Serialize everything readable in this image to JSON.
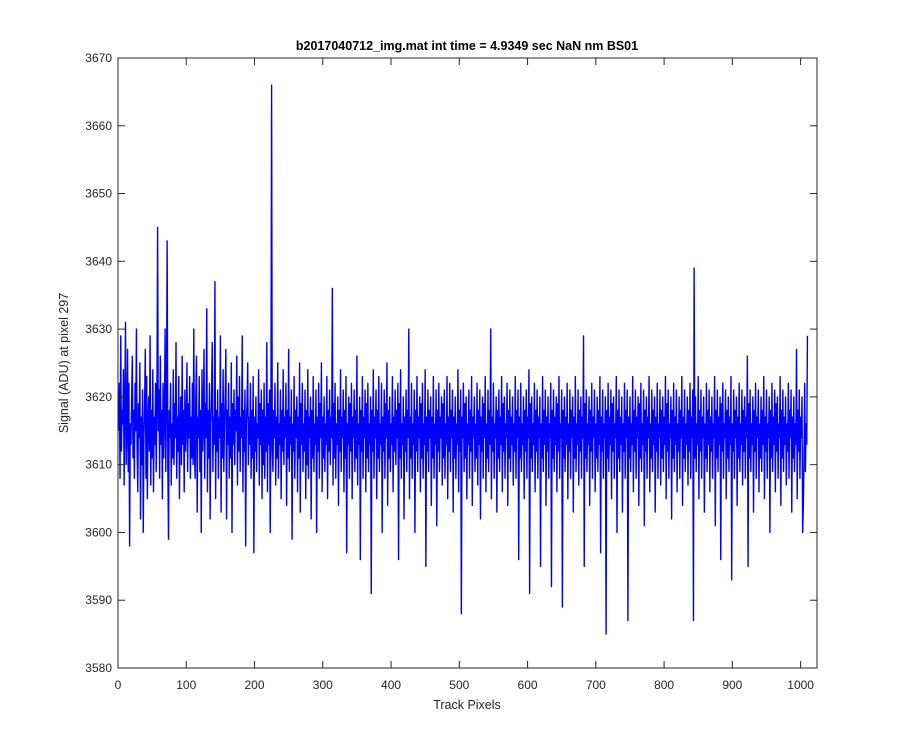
{
  "chart_data": {
    "type": "line",
    "title": "b2017040712_img.mat int time = 4.9349 sec  NaN nm BS01",
    "xlabel": "Track Pixels",
    "ylabel": "Signal (ADU) at pixel 297",
    "xlim": [
      0,
      1024
    ],
    "ylim": [
      3580,
      3670
    ],
    "xticks": [
      0,
      100,
      200,
      300,
      400,
      500,
      600,
      700,
      800,
      900,
      1000
    ],
    "yticks": [
      3580,
      3590,
      3600,
      3610,
      3620,
      3630,
      3640,
      3650,
      3660,
      3670
    ],
    "grid": false,
    "series_color": "#0000ff",
    "series": [
      {
        "x_start": 1,
        "x_step": 1,
        "values": [
          3615,
          3622,
          3608,
          3629,
          3612,
          3618,
          3616,
          3624,
          3607,
          3619,
          3631,
          3610,
          3615,
          3627,
          3609,
          3622,
          3598,
          3616,
          3613,
          3620,
          3626,
          3611,
          3618,
          3608,
          3622,
          3615,
          3630,
          3612,
          3606,
          3619,
          3614,
          3625,
          3602,
          3617,
          3610,
          3621,
          3600,
          3614,
          3619,
          3627,
          3608,
          3623,
          3605,
          3616,
          3620,
          3612,
          3629,
          3607,
          3618,
          3611,
          3624,
          3606,
          3617,
          3613,
          3622,
          3609,
          3619,
          3645,
          3615,
          3621,
          3608,
          3626,
          3613,
          3618,
          3605,
          3622,
          3611,
          3617,
          3630,
          3609,
          3620,
          3643,
          3610,
          3599,
          3618,
          3614,
          3622,
          3607,
          3616,
          3611,
          3624,
          3610,
          3619,
          3614,
          3628,
          3608,
          3617,
          3612,
          3623,
          3605,
          3615,
          3620,
          3610,
          3626,
          3613,
          3618,
          3606,
          3621,
          3612,
          3616,
          3625,
          3609,
          3619,
          3614,
          3623,
          3608,
          3617,
          3611,
          3622,
          3610,
          3630,
          3612,
          3608,
          3620,
          3626,
          3603,
          3617,
          3614,
          3623,
          3609,
          3618,
          3600,
          3624,
          3612,
          3616,
          3627,
          3608,
          3619,
          3614,
          3633,
          3606,
          3618,
          3611,
          3622,
          3602,
          3616,
          3620,
          3628,
          3609,
          3617,
          3613,
          3637,
          3605,
          3618,
          3612,
          3621,
          3608,
          3617,
          3614,
          3629,
          3603,
          3619,
          3611,
          3624,
          3609,
          3616,
          3620,
          3627,
          3602,
          3618,
          3613,
          3622,
          3608,
          3617,
          3611,
          3625,
          3600,
          3619,
          3613,
          3621,
          3610,
          3618,
          3615,
          3626,
          3607,
          3620,
          3612,
          3623,
          3609,
          3617,
          3614,
          3629,
          3606,
          3618,
          3612,
          3621,
          3598,
          3616,
          3619,
          3625,
          3610,
          3617,
          3613,
          3622,
          3608,
          3618,
          3611,
          3623,
          3597,
          3617,
          3612,
          3620,
          3609,
          3616,
          3614,
          3624,
          3607,
          3619,
          3613,
          3621,
          3605,
          3618,
          3610,
          3622,
          3608,
          3617,
          3612,
          3628,
          3606,
          3619,
          3613,
          3621,
          3600,
          3616,
          3666,
          3612,
          3609,
          3618,
          3614,
          3622,
          3607,
          3617,
          3611,
          3625,
          3608,
          3616,
          3613,
          3621,
          3605,
          3618,
          3612,
          3624,
          3610,
          3617,
          3614,
          3622,
          3604,
          3618,
          3611,
          3627,
          3609,
          3617,
          3613,
          3621,
          3599,
          3616,
          3612,
          3623,
          3608,
          3618,
          3614,
          3620,
          3606,
          3617,
          3611,
          3625,
          3603,
          3619,
          3613,
          3622,
          3609,
          3616,
          3612,
          3621,
          3605,
          3618,
          3610,
          3624,
          3608,
          3617,
          3614,
          3620,
          3602,
          3618,
          3611,
          3623,
          3609,
          3616,
          3613,
          3621,
          3600,
          3617,
          3612,
          3622,
          3608,
          3619,
          3614,
          3625,
          3606,
          3617,
          3611,
          3620,
          3609,
          3616,
          3613,
          3623,
          3605,
          3618,
          3612,
          3621,
          3610,
          3617,
          3614,
          3636,
          3607,
          3619,
          3611,
          3622,
          3608,
          3616,
          3613,
          3620,
          3604,
          3618,
          3612,
          3624,
          3609,
          3617,
          3614,
          3621,
          3606,
          3618,
          3611,
          3623,
          3597,
          3616,
          3613,
          3620,
          3608,
          3619,
          3612,
          3622,
          3605,
          3617,
          3614,
          3621,
          3609,
          3618,
          3611,
          3626,
          3607,
          3616,
          3613,
          3620,
          3596,
          3618,
          3612,
          3623,
          3608,
          3617,
          3614,
          3621,
          3606,
          3619,
          3611,
          3622,
          3609,
          3616,
          3613,
          3620,
          3591,
          3618,
          3612,
          3624,
          3608,
          3617,
          3614,
          3621,
          3605,
          3618,
          3611,
          3623,
          3609,
          3616,
          3613,
          3622,
          3600,
          3617,
          3612,
          3621,
          3608,
          3619,
          3614,
          3625,
          3604,
          3618,
          3611,
          3620,
          3609,
          3616,
          3613,
          3623,
          3606,
          3617,
          3612,
          3621,
          3610,
          3618,
          3614,
          3622,
          3596,
          3619,
          3611,
          3624,
          3608,
          3616,
          3613,
          3620,
          3602,
          3617,
          3612,
          3621,
          3609,
          3618,
          3614,
          3630,
          3605,
          3617,
          3611,
          3622,
          3608,
          3616,
          3613,
          3621,
          3600,
          3618,
          3612,
          3623,
          3609,
          3617,
          3614,
          3620,
          3606,
          3619,
          3611,
          3622,
          3608,
          3616,
          3613,
          3624,
          3595,
          3617,
          3612,
          3621,
          3609,
          3618,
          3614,
          3620,
          3604,
          3617,
          3611,
          3623,
          3608,
          3616,
          3613,
          3621,
          3601,
          3618,
          3612,
          3622,
          3609,
          3617,
          3614,
          3620,
          3607,
          3619,
          3611,
          3621,
          3608,
          3616,
          3613,
          3623,
          3605,
          3617,
          3612,
          3622,
          3609,
          3618,
          3614,
          3621,
          3603,
          3617,
          3611,
          3620,
          3608,
          3616,
          3613,
          3624,
          3606,
          3618,
          3612,
          3621,
          3588,
          3617,
          3614,
          3622,
          3609,
          3619,
          3611,
          3620,
          3605,
          3616,
          3613,
          3621,
          3608,
          3618,
          3612,
          3623,
          3604,
          3617,
          3614,
          3620,
          3609,
          3616,
          3611,
          3622,
          3607,
          3618,
          3613,
          3621,
          3602,
          3617,
          3612,
          3620,
          3608,
          3619,
          3614,
          3623,
          3606,
          3616,
          3611,
          3621,
          3609,
          3618,
          3613,
          3630,
          3605,
          3617,
          3612,
          3622,
          3608,
          3616,
          3614,
          3620,
          3603,
          3618,
          3611,
          3621,
          3609,
          3617,
          3613,
          3623,
          3606,
          3619,
          3612,
          3620,
          3608,
          3616,
          3614,
          3622,
          3604,
          3618,
          3611,
          3621,
          3609,
          3617,
          3613,
          3620,
          3607,
          3616,
          3612,
          3623,
          3608,
          3618,
          3614,
          3621,
          3596,
          3617,
          3611,
          3622,
          3609,
          3616,
          3613,
          3620,
          3605,
          3618,
          3612,
          3621,
          3608,
          3617,
          3614,
          3624,
          3591,
          3619,
          3611,
          3620,
          3609,
          3616,
          3613,
          3622,
          3606,
          3618,
          3612,
          3621,
          3608,
          3617,
          3614,
          3620,
          3595,
          3616,
          3611,
          3623,
          3609,
          3618,
          3613,
          3621,
          3604,
          3617,
          3612,
          3620,
          3608,
          3616,
          3614,
          3622,
          3592,
          3618,
          3611,
          3621,
          3609,
          3617,
          3613,
          3620,
          3606,
          3619,
          3612,
          3623,
          3608,
          3616,
          3614,
          3621,
          3589,
          3618,
          3611,
          3620,
          3609,
          3617,
          3613,
          3622,
          3605,
          3616,
          3612,
          3621,
          3608,
          3618,
          3614,
          3620,
          3603,
          3617,
          3611,
          3623,
          3609,
          3616,
          3613,
          3621,
          3607,
          3618,
          3612,
          3620,
          3608,
          3617,
          3614,
          3629,
          3595,
          3619,
          3611,
          3621,
          3609,
          3616,
          3613,
          3620,
          3604,
          3618,
          3612,
          3622,
          3608,
          3617,
          3614,
          3621,
          3606,
          3616,
          3611,
          3620,
          3609,
          3618,
          3613,
          3623,
          3597,
          3617,
          3612,
          3621,
          3608,
          3616,
          3614,
          3620,
          3585,
          3618,
          3611,
          3622,
          3609,
          3617,
          3613,
          3621,
          3605,
          3619,
          3612,
          3620,
          3608,
          3616,
          3614,
          3623,
          3600,
          3618,
          3611,
          3621,
          3609,
          3617,
          3613,
          3620,
          3603,
          3616,
          3612,
          3622,
          3608,
          3618,
          3614,
          3621,
          3587,
          3617,
          3611,
          3620,
          3609,
          3616,
          3613,
          3623,
          3606,
          3618,
          3612,
          3621,
          3608,
          3617,
          3614,
          3620,
          3604,
          3619,
          3611,
          3622,
          3609,
          3616,
          3613,
          3621,
          3601,
          3618,
          3612,
          3620,
          3608,
          3617,
          3614,
          3623,
          3606,
          3616,
          3611,
          3621,
          3609,
          3618,
          3613,
          3620,
          3603,
          3617,
          3612,
          3622,
          3608,
          3616,
          3614,
          3621,
          3607,
          3618,
          3611,
          3620,
          3609,
          3617,
          3613,
          3623,
          3605,
          3619,
          3612,
          3621,
          3608,
          3616,
          3614,
          3620,
          3602,
          3618,
          3611,
          3622,
          3609,
          3617,
          3613,
          3621,
          3606,
          3616,
          3612,
          3620,
          3608,
          3618,
          3614,
          3623,
          3604,
          3617,
          3611,
          3621,
          3609,
          3616,
          3613,
          3620,
          3607,
          3618,
          3612,
          3622,
          3608,
          3617,
          3614,
          3621,
          3587,
          3639,
          3611,
          3620,
          3609,
          3616,
          3613,
          3623,
          3605,
          3618,
          3612,
          3621,
          3608,
          3617,
          3614,
          3620,
          3603,
          3616,
          3611,
          3622,
          3609,
          3618,
          3613,
          3621,
          3606,
          3617,
          3612,
          3620,
          3608,
          3616,
          3614,
          3623,
          3601,
          3618,
          3611,
          3621,
          3609,
          3617,
          3613,
          3620,
          3596,
          3619,
          3612,
          3622,
          3608,
          3616,
          3614,
          3621,
          3605,
          3618,
          3611,
          3620,
          3609,
          3617,
          3613,
          3623,
          3593,
          3616,
          3612,
          3621,
          3608,
          3618,
          3614,
          3620,
          3604,
          3617,
          3611,
          3622,
          3609,
          3616,
          3613,
          3621,
          3607,
          3618,
          3612,
          3620,
          3608,
          3617,
          3614,
          3626,
          3595,
          3619,
          3611,
          3621,
          3609,
          3616,
          3613,
          3620,
          3603,
          3618,
          3612,
          3622,
          3608,
          3617,
          3614,
          3621,
          3606,
          3616,
          3611,
          3620,
          3609,
          3618,
          3613,
          3623,
          3605,
          3617,
          3612,
          3621,
          3608,
          3616,
          3614,
          3620,
          3600,
          3618,
          3611,
          3622,
          3609,
          3617,
          3613,
          3621,
          3606,
          3619,
          3612,
          3620,
          3608,
          3616,
          3614,
          3623,
          3604,
          3618,
          3611,
          3621,
          3609,
          3617,
          3613,
          3620,
          3607,
          3616,
          3612,
          3622,
          3608,
          3618,
          3614,
          3621,
          3603,
          3617,
          3611,
          3620,
          3609,
          3616,
          3613,
          3627,
          3605,
          3618,
          3612,
          3621,
          3608,
          3617,
          3614,
          3620,
          3600,
          3604,
          3611,
          3622,
          3609,
          3616,
          3613,
          3629
        ]
      }
    ]
  }
}
